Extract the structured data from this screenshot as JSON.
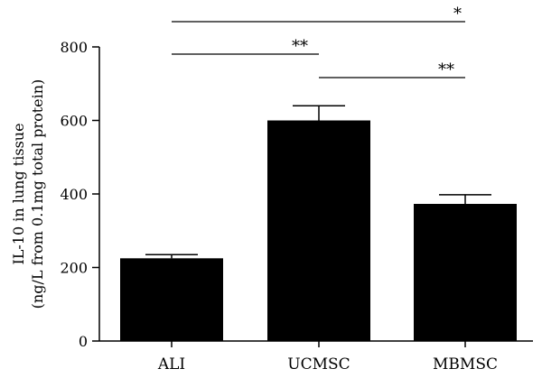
{
  "chart_data": {
    "type": "bar",
    "categories": [
      "ALI",
      "UCMSC",
      "MBMSC"
    ],
    "values": [
      225,
      600,
      373
    ],
    "errors": [
      10,
      40,
      25
    ],
    "ylabel_line1": "IL-10 in lung tissue",
    "ylabel_line2": "(ng/L from 0.1mg total protein)",
    "xlabel": "",
    "ylim": [
      0,
      800
    ],
    "yticks": [
      0,
      200,
      400,
      600,
      800
    ],
    "bar_color": "#000000",
    "grid": false,
    "significance": [
      {
        "from": "ALI",
        "to": "MBMSC",
        "label": "*"
      },
      {
        "from": "ALI",
        "to": "UCMSC",
        "label": "**"
      },
      {
        "from": "UCMSC",
        "to": "MBMSC",
        "label": "**"
      }
    ]
  }
}
